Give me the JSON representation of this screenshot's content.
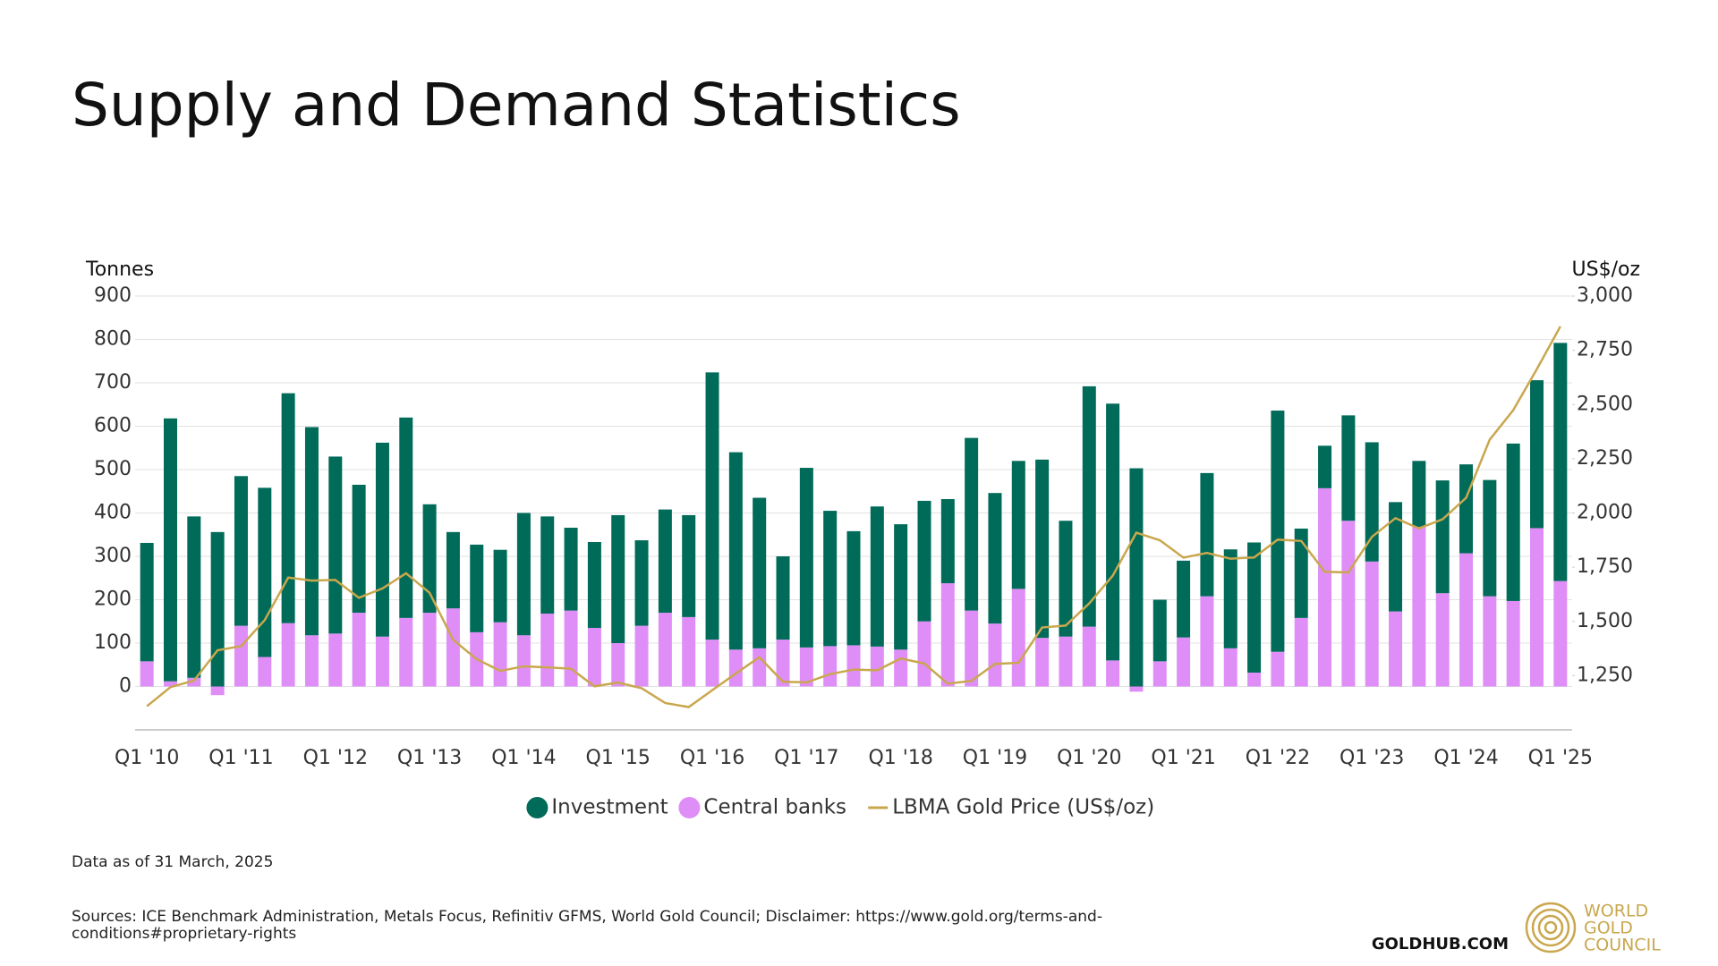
{
  "chart_data": {
    "type": "bar",
    "stacked": true,
    "title": "Supply and Demand Statistics",
    "y_label": "Tonnes",
    "y2_label": "US$/oz",
    "note": "Data as of 31 March, 2025",
    "source": "Sources: ICE Benchmark Administration, Metals Focus, Refinitiv GFMS, World Gold Council; Disclaimer: https://www.gold.org/terms-and-conditions#proprietary-rights",
    "categories": [
      "Q1 '10",
      null,
      null,
      null,
      "Q1 '11",
      null,
      null,
      null,
      "Q1 '12",
      null,
      null,
      null,
      "Q1 '13",
      null,
      null,
      null,
      "Q1 '14",
      null,
      null,
      null,
      "Q1 '15",
      null,
      null,
      null,
      "Q1 '16",
      null,
      null,
      null,
      "Q1 '17",
      null,
      null,
      null,
      "Q1 '18",
      null,
      null,
      null,
      "Q1 '19",
      null,
      null,
      null,
      "Q1 '20",
      null,
      null,
      null,
      "Q1 '21",
      null,
      null,
      null,
      "Q1 '22",
      null,
      null,
      null,
      "Q1 '23",
      null,
      null,
      null,
      "Q1 '24",
      null,
      null,
      null,
      "Q1 '25"
    ],
    "series": [
      {
        "name": "Investment",
        "color": "#006b58",
        "values": [
          273,
          606,
          372,
          356,
          345,
          390,
          530,
          480,
          408,
          295,
          447,
          462,
          250,
          176,
          202,
          167,
          282,
          224,
          191,
          198,
          295,
          197,
          238,
          235,
          616,
          455,
          347,
          192,
          414,
          312,
          263,
          323,
          289,
          278,
          194,
          398,
          301,
          295,
          411,
          267,
          554,
          592,
          503,
          142,
          177,
          284,
          228,
          300,
          556,
          206,
          98,
          243,
          275,
          252,
          152,
          260,
          205,
          268,
          363,
          341,
          549
        ]
      },
      {
        "name": "Central banks",
        "color": "#df8ef8",
        "values": [
          58,
          12,
          20,
          -20,
          140,
          68,
          146,
          118,
          122,
          170,
          115,
          158,
          170,
          180,
          125,
          148,
          118,
          168,
          175,
          135,
          100,
          140,
          170,
          160,
          108,
          85,
          88,
          108,
          90,
          93,
          95,
          92,
          85,
          150,
          238,
          175,
          145,
          225,
          112,
          115,
          138,
          60,
          -12,
          58,
          113,
          208,
          88,
          32,
          80,
          158,
          457,
          382,
          288,
          173,
          368,
          215,
          307,
          208,
          197,
          365,
          243
        ]
      },
      {
        "name": "LBMA Gold Price (US$/oz)",
        "color": "#c9a74e",
        "type": "line",
        "axis": "y2",
        "values": [
          1109,
          1197,
          1227,
          1367,
          1386,
          1506,
          1702,
          1688,
          1691,
          1609,
          1652,
          1722,
          1632,
          1415,
          1326,
          1272,
          1293,
          1288,
          1282,
          1201,
          1218,
          1192,
          1124,
          1105,
          1183,
          1260,
          1335,
          1222,
          1219,
          1257,
          1278,
          1275,
          1329,
          1306,
          1213,
          1226,
          1304,
          1309,
          1472,
          1481,
          1583,
          1711,
          1909,
          1874,
          1794,
          1816,
          1789,
          1795,
          1877,
          1871,
          1729,
          1726,
          1890,
          1976,
          1929,
          1971,
          2070,
          2338,
          2474,
          2663,
          2860
        ]
      }
    ],
    "ylim": [
      -100,
      900
    ],
    "yticks": [
      0,
      100,
      200,
      300,
      400,
      500,
      600,
      700,
      800,
      900
    ],
    "y2lim": [
      1000,
      3000
    ],
    "y2ticks": [
      {
        "value": 1250,
        "label": "1,250"
      },
      {
        "value": 1500,
        "label": "1,500"
      },
      {
        "value": 1750,
        "label": "1,750"
      },
      {
        "value": 2000,
        "label": "2,000"
      },
      {
        "value": 2250,
        "label": "2,250"
      },
      {
        "value": 2500,
        "label": "2,500"
      },
      {
        "value": 2750,
        "label": "2,750"
      },
      {
        "value": 3000,
        "label": "3,000"
      }
    ],
    "grid": true,
    "legend": "bottom"
  },
  "footer": {
    "site": "GOLDHUB.COM",
    "logo": [
      "WORLD",
      "GOLD",
      "COUNCIL"
    ]
  }
}
